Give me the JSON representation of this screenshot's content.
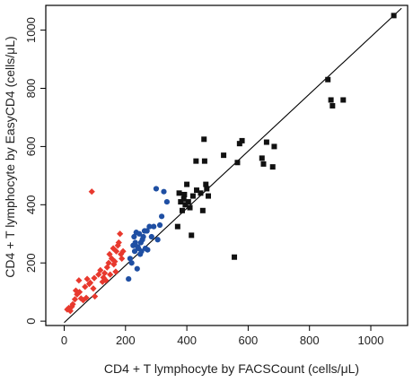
{
  "chart_data": {
    "type": "scatter",
    "title": "",
    "xlabel": "CD4 + T lymphocyte by FACSCount (cells/μL)",
    "ylabel": "CD4 + T lymphocyte by EasyCD4 (cells/μL)",
    "xlim": [
      -60,
      1120
    ],
    "ylim": [
      -15,
      1085
    ],
    "xticks": [
      0,
      200,
      400,
      600,
      800,
      1000
    ],
    "yticks": [
      0,
      200,
      400,
      600,
      800,
      1000
    ],
    "grid": false,
    "legend": "none",
    "reference_line": {
      "type": "identity",
      "from": [
        0,
        -5
      ],
      "to": [
        1100,
        1075
      ]
    },
    "series": [
      {
        "marker": "diamond",
        "color": "#e8392e",
        "points": [
          [
            10,
            40
          ],
          [
            15,
            45
          ],
          [
            20,
            35
          ],
          [
            25,
            50
          ],
          [
            28,
            58
          ],
          [
            35,
            75
          ],
          [
            38,
            105
          ],
          [
            42,
            92
          ],
          [
            48,
            140
          ],
          [
            50,
            100
          ],
          [
            55,
            78
          ],
          [
            62,
            72
          ],
          [
            68,
            118
          ],
          [
            72,
            80
          ],
          [
            75,
            145
          ],
          [
            82,
            128
          ],
          [
            85,
            132
          ],
          [
            90,
            445
          ],
          [
            95,
            112
          ],
          [
            98,
            148
          ],
          [
            100,
            85
          ],
          [
            112,
            160
          ],
          [
            118,
            175
          ],
          [
            125,
            135
          ],
          [
            128,
            150
          ],
          [
            132,
            165
          ],
          [
            136,
            140
          ],
          [
            140,
            185
          ],
          [
            145,
            200
          ],
          [
            148,
            230
          ],
          [
            150,
            160
          ],
          [
            155,
            215
          ],
          [
            160,
            250
          ],
          [
            162,
            195
          ],
          [
            165,
            205
          ],
          [
            168,
            170
          ],
          [
            170,
            240
          ],
          [
            175,
            260
          ],
          [
            178,
            270
          ],
          [
            182,
            300
          ],
          [
            185,
            230
          ],
          [
            188,
            215
          ],
          [
            192,
            240
          ]
        ]
      },
      {
        "marker": "circle",
        "color": "#1f4fa3",
        "points": [
          [
            210,
            145
          ],
          [
            215,
            215
          ],
          [
            220,
            200
          ],
          [
            225,
            260
          ],
          [
            228,
            290
          ],
          [
            230,
            240
          ],
          [
            232,
            270
          ],
          [
            235,
            305
          ],
          [
            238,
            180
          ],
          [
            240,
            255
          ],
          [
            242,
            250
          ],
          [
            245,
            300
          ],
          [
            248,
            230
          ],
          [
            250,
            270
          ],
          [
            252,
            240
          ],
          [
            255,
            280
          ],
          [
            258,
            290
          ],
          [
            262,
            310
          ],
          [
            265,
            250
          ],
          [
            270,
            310
          ],
          [
            272,
            245
          ],
          [
            278,
            325
          ],
          [
            285,
            290
          ],
          [
            292,
            325
          ],
          [
            300,
            455
          ],
          [
            305,
            280
          ],
          [
            312,
            330
          ],
          [
            318,
            360
          ],
          [
            325,
            445
          ],
          [
            335,
            410
          ]
        ]
      },
      {
        "marker": "square",
        "color": "#111111",
        "points": [
          [
            370,
            325
          ],
          [
            375,
            440
          ],
          [
            380,
            410
          ],
          [
            385,
            380
          ],
          [
            390,
            420
          ],
          [
            392,
            435
          ],
          [
            395,
            400
          ],
          [
            400,
            470
          ],
          [
            405,
            410
          ],
          [
            410,
            390
          ],
          [
            415,
            295
          ],
          [
            420,
            430
          ],
          [
            430,
            550
          ],
          [
            432,
            450
          ],
          [
            445,
            440
          ],
          [
            452,
            380
          ],
          [
            456,
            625
          ],
          [
            458,
            550
          ],
          [
            462,
            470
          ],
          [
            465,
            455
          ],
          [
            470,
            430
          ],
          [
            520,
            570
          ],
          [
            555,
            220
          ],
          [
            565,
            545
          ],
          [
            572,
            610
          ],
          [
            580,
            620
          ],
          [
            645,
            560
          ],
          [
            650,
            540
          ],
          [
            660,
            615
          ],
          [
            680,
            530
          ],
          [
            685,
            600
          ],
          [
            860,
            830
          ],
          [
            870,
            760
          ],
          [
            875,
            740
          ],
          [
            910,
            760
          ],
          [
            1075,
            1050
          ]
        ]
      }
    ]
  }
}
